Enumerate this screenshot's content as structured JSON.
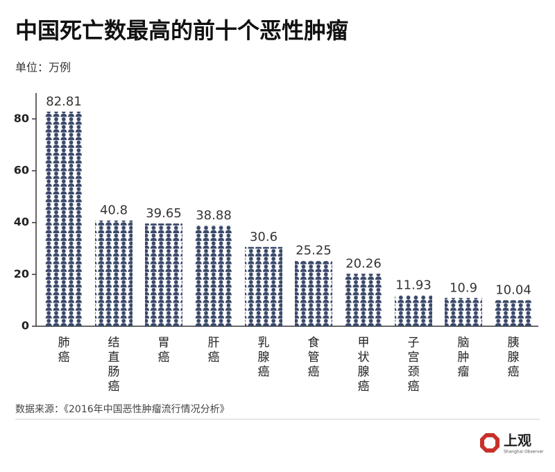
{
  "chart_data": {
    "type": "pictogram-bar",
    "title": "中国死亡数最高的前十个恶性肿瘤",
    "subtitle": "单位：万例",
    "source": "数据来源：《2016年中国恶性肿瘤流行情况分析》",
    "logo": {
      "name": "上观",
      "english": "Shanghai Observer"
    },
    "categories": [
      "肺癌",
      "结直肠癌",
      "胃癌",
      "肝癌",
      "乳腺癌",
      "食管癌",
      "甲状腺癌",
      "子宫颈癌",
      "脑肿瘤",
      "胰腺癌"
    ],
    "values": [
      82.81,
      40.8,
      39.65,
      38.88,
      30.6,
      25.25,
      20.26,
      11.93,
      10.9,
      10.04
    ],
    "color": "#3a4869",
    "ylim": [
      0,
      90
    ],
    "yticks": [
      0,
      20,
      40,
      60,
      80
    ]
  }
}
